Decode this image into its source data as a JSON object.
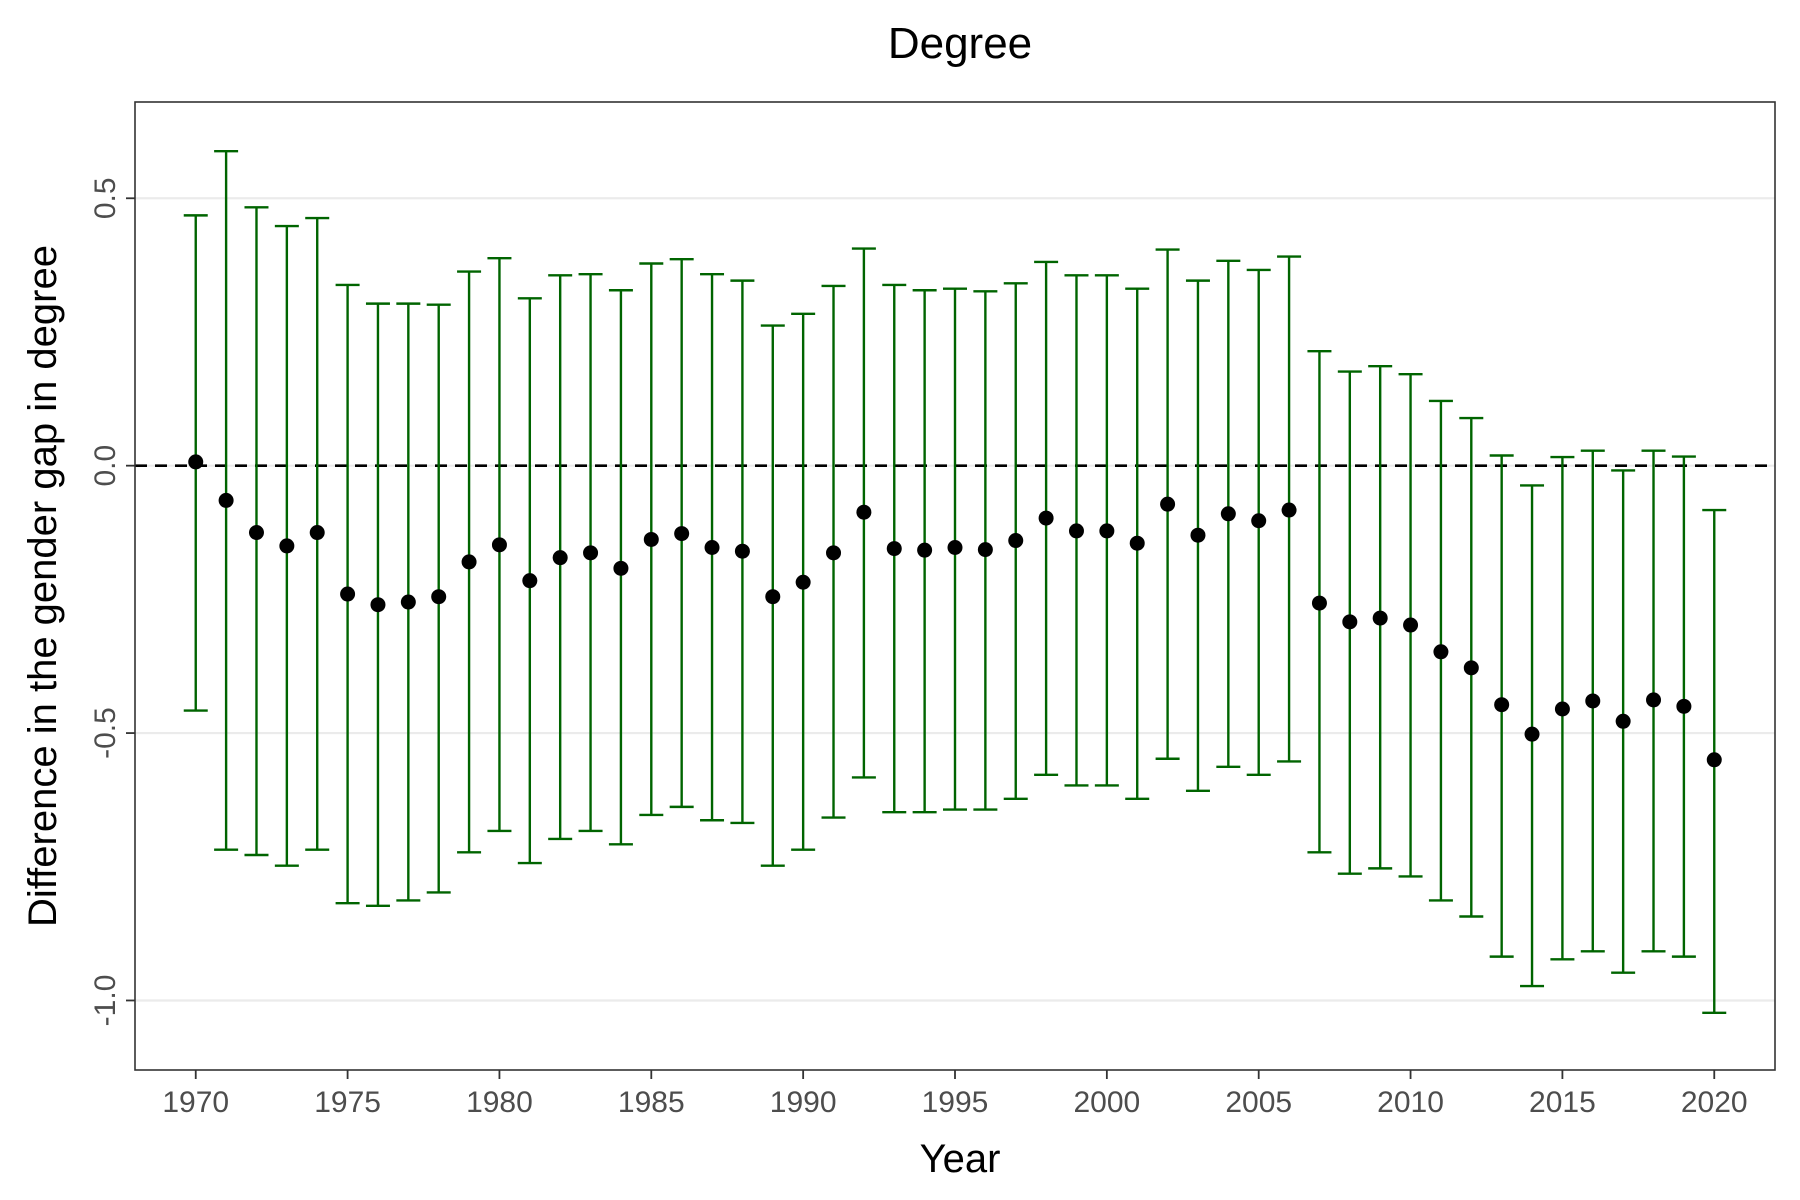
{
  "chart_data": {
    "type": "scatter",
    "title": "Degree",
    "xlabel": "Year",
    "ylabel": "Difference in the gender gap in degree",
    "xlim": [
      1968,
      2022
    ],
    "ylim": [
      -1.13,
      0.68
    ],
    "x_ticks": [
      1970,
      1975,
      1980,
      1985,
      1990,
      1995,
      2000,
      2005,
      2010,
      2015,
      2020
    ],
    "x_tick_labels": [
      "1970",
      "1975",
      "1980",
      "1985",
      "1990",
      "1995",
      "2000",
      "2005",
      "2010",
      "2015",
      "2020"
    ],
    "y_ticks": [
      -1.0,
      -0.5,
      0.0,
      0.5
    ],
    "y_tick_labels": [
      "-1.0",
      "-0.5",
      "0.0",
      "0.5"
    ],
    "grid": "horizontal-major",
    "reference_line": 0,
    "colors": {
      "error_bar": "#006400",
      "point": "#000000",
      "grid": "#ebebeb",
      "reference_line": "#000000"
    },
    "series": [
      {
        "name": "estimate",
        "x": [
          1970,
          1971,
          1972,
          1973,
          1974,
          1975,
          1976,
          1977,
          1978,
          1979,
          1980,
          1981,
          1982,
          1983,
          1984,
          1985,
          1986,
          1987,
          1988,
          1989,
          1990,
          1991,
          1992,
          1993,
          1994,
          1995,
          1996,
          1997,
          1998,
          1999,
          2000,
          2001,
          2002,
          2003,
          2004,
          2005,
          2006,
          2007,
          2008,
          2009,
          2010,
          2011,
          2012,
          2013,
          2014,
          2015,
          2016,
          2017,
          2018,
          2019,
          2020
        ],
        "y": [
          0.007,
          -0.065,
          -0.125,
          -0.15,
          -0.125,
          -0.24,
          -0.26,
          -0.255,
          -0.245,
          -0.18,
          -0.148,
          -0.215,
          -0.172,
          -0.163,
          -0.192,
          -0.138,
          -0.127,
          -0.153,
          -0.16,
          -0.245,
          -0.218,
          -0.163,
          -0.087,
          -0.155,
          -0.158,
          -0.153,
          -0.157,
          -0.14,
          -0.098,
          -0.122,
          -0.122,
          -0.145,
          -0.072,
          -0.13,
          -0.09,
          -0.103,
          -0.083,
          -0.257,
          -0.292,
          -0.285,
          -0.298,
          -0.348,
          -0.378,
          -0.447,
          -0.502,
          -0.455,
          -0.44,
          -0.478,
          -0.438,
          -0.45,
          -0.55
        ],
        "lower": [
          -0.458,
          -0.718,
          -0.728,
          -0.748,
          -0.718,
          -0.818,
          -0.823,
          -0.813,
          -0.798,
          -0.723,
          -0.683,
          -0.743,
          -0.698,
          -0.683,
          -0.708,
          -0.653,
          -0.638,
          -0.663,
          -0.668,
          -0.748,
          -0.718,
          -0.658,
          -0.583,
          -0.648,
          -0.648,
          -0.643,
          -0.643,
          -0.623,
          -0.578,
          -0.598,
          -0.598,
          -0.623,
          -0.548,
          -0.608,
          -0.563,
          -0.578,
          -0.553,
          -0.723,
          -0.763,
          -0.753,
          -0.768,
          -0.813,
          -0.843,
          -0.918,
          -0.973,
          -0.923,
          -0.908,
          -0.948,
          -0.908,
          -0.918,
          -1.023
        ],
        "upper": [
          0.468,
          0.588,
          0.483,
          0.448,
          0.463,
          0.338,
          0.303,
          0.303,
          0.301,
          0.363,
          0.388,
          0.313,
          0.356,
          0.358,
          0.328,
          0.378,
          0.386,
          0.358,
          0.346,
          0.262,
          0.284,
          0.336,
          0.406,
          0.338,
          0.328,
          0.331,
          0.326,
          0.341,
          0.381,
          0.356,
          0.356,
          0.331,
          0.404,
          0.346,
          0.383,
          0.366,
          0.391,
          0.214,
          0.176,
          0.186,
          0.171,
          0.121,
          0.089,
          0.019,
          -0.037,
          0.016,
          0.028,
          -0.009,
          0.028,
          0.017,
          -0.083
        ]
      }
    ]
  }
}
